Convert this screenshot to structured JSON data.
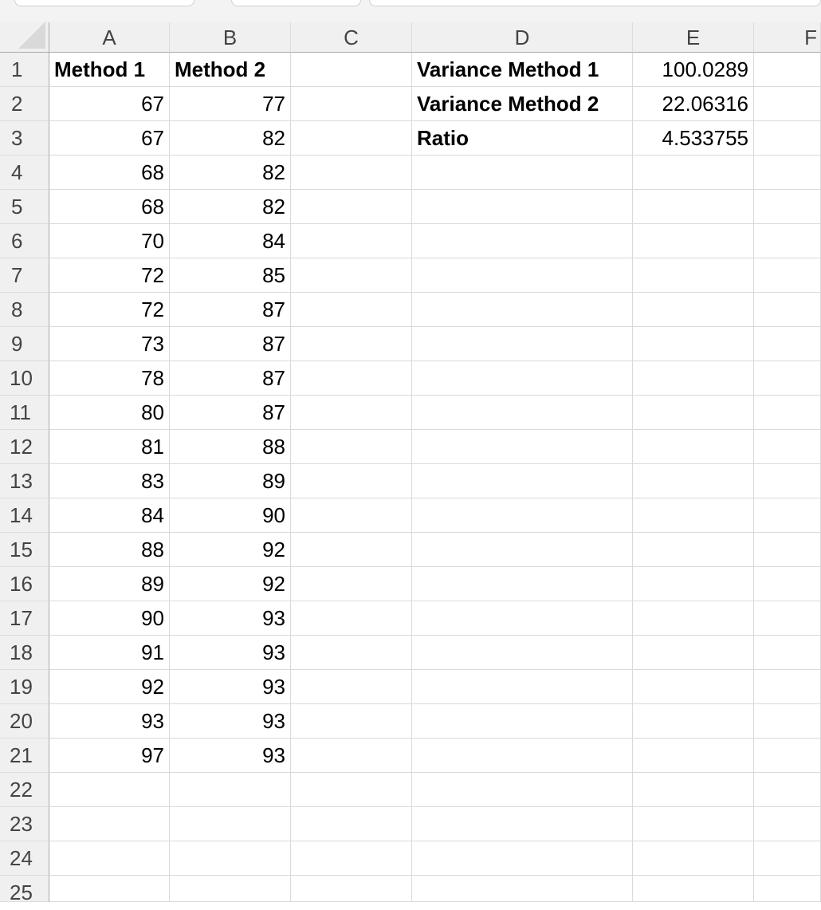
{
  "columns": [
    "A",
    "B",
    "C",
    "D",
    "E",
    "F"
  ],
  "row_numbers": [
    "1",
    "2",
    "3",
    "4",
    "5",
    "6",
    "7",
    "8",
    "9",
    "10",
    "11",
    "12",
    "13",
    "14",
    "15",
    "16",
    "17",
    "18",
    "19",
    "20",
    "21",
    "22",
    "23",
    "24",
    "25"
  ],
  "cells": {
    "A1": {
      "v": "Method 1",
      "bold": true
    },
    "B1": {
      "v": "Method 2",
      "bold": true
    },
    "D1": {
      "v": "Variance Method 1",
      "bold": true
    },
    "E1": {
      "v": "100.0289",
      "num": true
    },
    "D2": {
      "v": "Variance Method 2",
      "bold": true
    },
    "E2": {
      "v": "22.06316",
      "num": true
    },
    "D3": {
      "v": "Ratio",
      "bold": true
    },
    "E3": {
      "v": "4.533755",
      "num": true
    }
  },
  "method1": [
    "67",
    "67",
    "68",
    "68",
    "70",
    "72",
    "72",
    "73",
    "78",
    "80",
    "81",
    "83",
    "84",
    "88",
    "89",
    "90",
    "91",
    "92",
    "93",
    "97"
  ],
  "method2": [
    "77",
    "82",
    "82",
    "82",
    "84",
    "85",
    "87",
    "87",
    "87",
    "87",
    "88",
    "89",
    "90",
    "92",
    "92",
    "93",
    "93",
    "93",
    "93",
    "93"
  ]
}
